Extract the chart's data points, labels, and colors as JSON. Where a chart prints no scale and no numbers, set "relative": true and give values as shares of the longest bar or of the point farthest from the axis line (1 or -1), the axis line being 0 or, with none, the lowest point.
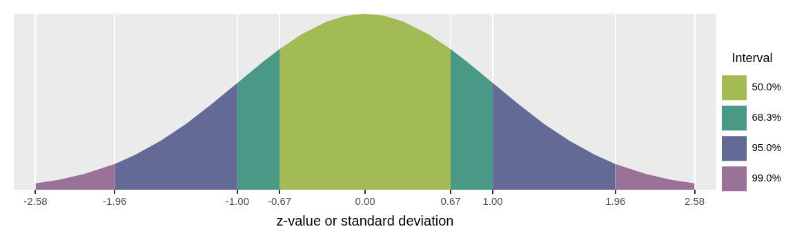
{
  "chart_data": {
    "type": "area",
    "relative": true,
    "xlabel": "z-value or standard deviation",
    "legend_title": "Interval",
    "legend": "right",
    "grid": "x",
    "x": [
      -2.58,
      -2.4,
      -2.2,
      -1.96,
      -1.8,
      -1.6,
      -1.4,
      -1.2,
      -1.0,
      -0.8,
      -0.67,
      -0.5,
      -0.3,
      -0.15,
      0,
      0.15,
      0.3,
      0.5,
      0.67,
      0.8,
      1.0,
      1.2,
      1.4,
      1.6,
      1.8,
      1.96,
      2.2,
      2.4,
      2.58
    ],
    "xlim": [
      -2.75,
      2.75
    ],
    "xticks": [
      {
        "value": -2.58,
        "label": "-2.58"
      },
      {
        "value": -1.96,
        "label": "-1.96"
      },
      {
        "value": -1.0,
        "label": "-1.00"
      },
      {
        "value": -0.67,
        "label": "-0.67"
      },
      {
        "value": 0,
        "label": "0.00"
      },
      {
        "value": 0.67,
        "label": "0.67"
      },
      {
        "value": 1.0,
        "label": "1.00"
      },
      {
        "value": 1.96,
        "label": "1.96"
      },
      {
        "value": 2.58,
        "label": "2.58"
      }
    ],
    "series": [
      {
        "name": "50.0%",
        "color": "#a3bb55",
        "values": [
          null,
          null,
          null,
          null,
          null,
          null,
          null,
          null,
          null,
          null,
          0.799,
          0.882,
          0.956,
          0.989,
          1,
          0.989,
          0.956,
          0.882,
          0.799,
          null,
          null,
          null,
          null,
          null,
          null,
          null,
          null,
          null,
          null
        ]
      },
      {
        "name": "68.3%",
        "color": "#4a9886",
        "values": [
          null,
          null,
          null,
          null,
          null,
          null,
          null,
          null,
          0.607,
          0.726,
          0.799,
          null,
          null,
          null,
          null,
          null,
          null,
          null,
          0.799,
          0.726,
          0.607,
          null,
          null,
          null,
          null,
          null,
          null,
          null,
          null
        ]
      },
      {
        "name": "95.0%",
        "color": "#646a96",
        "values": [
          null,
          null,
          null,
          0.146,
          0.198,
          0.278,
          0.375,
          0.487,
          0.607,
          null,
          null,
          null,
          null,
          null,
          null,
          null,
          null,
          null,
          null,
          null,
          0.607,
          0.487,
          0.375,
          0.278,
          0.198,
          0.146,
          null,
          null,
          null
        ]
      },
      {
        "name": "99.0%",
        "color": "#9a7199",
        "values": [
          0.036,
          0.056,
          0.089,
          0.146,
          null,
          null,
          null,
          null,
          null,
          null,
          null,
          null,
          null,
          null,
          null,
          null,
          null,
          null,
          null,
          null,
          null,
          null,
          null,
          null,
          null,
          0.146,
          0.089,
          0.056,
          0.036
        ]
      }
    ]
  }
}
